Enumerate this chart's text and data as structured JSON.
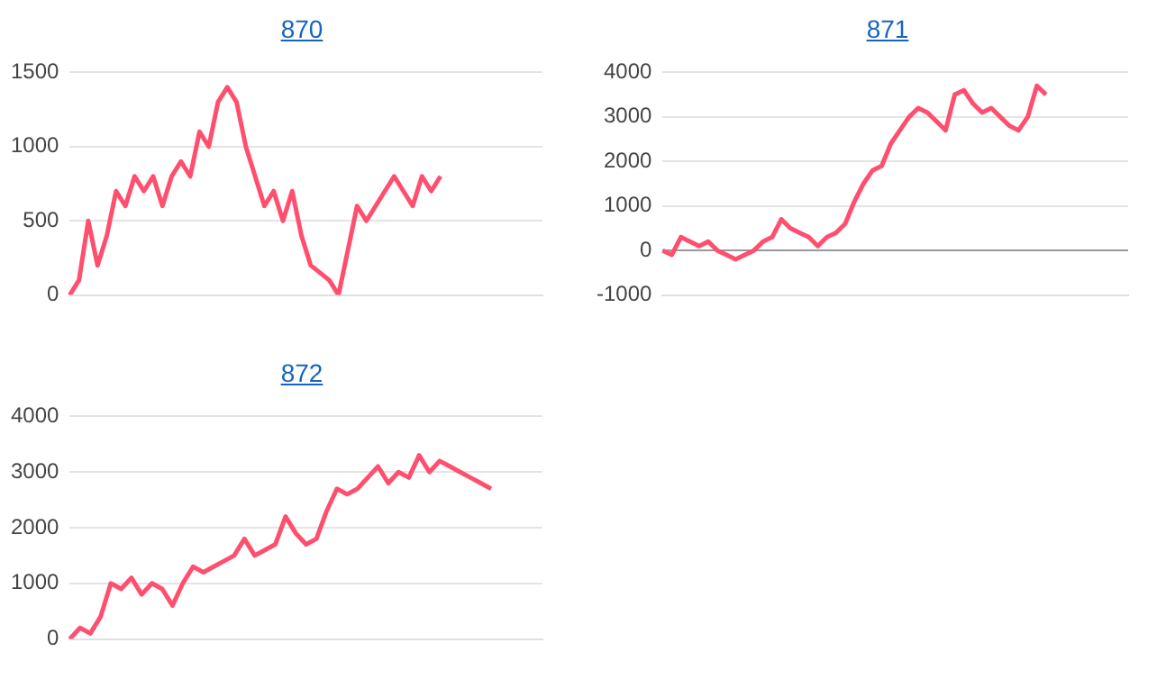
{
  "chart_data": [
    {
      "type": "line",
      "title": "870",
      "categories": [
        null,
        null,
        null,
        null,
        null,
        null,
        null,
        null,
        null,
        null,
        null,
        null,
        null,
        null,
        null,
        null,
        null,
        null,
        null,
        null,
        null,
        null,
        null,
        null,
        null,
        null,
        null,
        null,
        null,
        null,
        null,
        null,
        null,
        null,
        null,
        null,
        null,
        null,
        null,
        null,
        null,
        null,
        null,
        null,
        null,
        null,
        null,
        null,
        null,
        null,
        null,
        null
      ],
      "series": [
        {
          "color": "#ff4f6e",
          "values": [
            0,
            100,
            500,
            200,
            400,
            700,
            600,
            800,
            700,
            800,
            600,
            800,
            900,
            800,
            1100,
            1000,
            1300,
            1400,
            1300,
            1000,
            800,
            600,
            700,
            500,
            700,
            400,
            200,
            150,
            100,
            0,
            300,
            600,
            500,
            600,
            700,
            800,
            700,
            600,
            800,
            700,
            800,
            null,
            null,
            null,
            null,
            null,
            null,
            null,
            null,
            null,
            null,
            null
          ]
        }
      ],
      "ylim": [
        0,
        1500
      ],
      "yticks": [
        0,
        500,
        1000,
        1500
      ],
      "grid": "y",
      "legend": false,
      "marker": "none",
      "tick_labels": "y"
    },
    {
      "type": "line",
      "title": "871",
      "categories": [
        null,
        null,
        null,
        null,
        null,
        null,
        null,
        null,
        null,
        null,
        null,
        null,
        null,
        null,
        null,
        null,
        null,
        null,
        null,
        null,
        null,
        null,
        null,
        null,
        null,
        null,
        null,
        null,
        null,
        null,
        null,
        null,
        null,
        null,
        null,
        null,
        null,
        null,
        null,
        null,
        null,
        null,
        null,
        null,
        null,
        null,
        null,
        null,
        null,
        null,
        null,
        null
      ],
      "series": [
        {
          "color": "#ff4f6e",
          "values": [
            0,
            -100,
            300,
            200,
            100,
            200,
            0,
            -100,
            -200,
            -100,
            0,
            200,
            300,
            700,
            500,
            400,
            300,
            100,
            300,
            400,
            600,
            1100,
            1500,
            1800,
            1900,
            2400,
            2700,
            3000,
            3200,
            3100,
            2900,
            2700,
            3500,
            3600,
            3300,
            3100,
            3200,
            3000,
            2800,
            2700,
            3000,
            3700,
            3500,
            null,
            null,
            null,
            null,
            null,
            null,
            null,
            null,
            null
          ]
        }
      ],
      "ylim": [
        -1000,
        4000
      ],
      "yticks": [
        -1000,
        0,
        1000,
        2000,
        3000,
        4000
      ],
      "grid": "y",
      "legend": false,
      "marker": "none",
      "tick_labels": "y"
    },
    {
      "type": "line",
      "title": "872",
      "categories": [
        null,
        null,
        null,
        null,
        null,
        null,
        null,
        null,
        null,
        null,
        null,
        null,
        null,
        null,
        null,
        null,
        null,
        null,
        null,
        null,
        null,
        null,
        null,
        null,
        null,
        null,
        null,
        null,
        null,
        null,
        null,
        null,
        null,
        null,
        null,
        null,
        null,
        null,
        null,
        null,
        null,
        null,
        null,
        null,
        null,
        null,
        null
      ],
      "series": [
        {
          "color": "#ff4f6e",
          "values": [
            0,
            200,
            100,
            400,
            1000,
            900,
            1100,
            800,
            1000,
            900,
            600,
            1000,
            1300,
            1200,
            1300,
            1400,
            1500,
            1800,
            1500,
            1600,
            1700,
            2200,
            1900,
            1700,
            1800,
            2300,
            2700,
            2600,
            2700,
            2900,
            3100,
            2800,
            3000,
            2900,
            3300,
            3000,
            3200,
            3100,
            3000,
            2900,
            2800,
            2700,
            null,
            null,
            null,
            null,
            null
          ]
        }
      ],
      "ylim": [
        0,
        4000
      ],
      "yticks": [
        0,
        1000,
        2000,
        3000,
        4000
      ],
      "grid": "y",
      "legend": false,
      "marker": "none",
      "tick_labels": "y"
    }
  ]
}
